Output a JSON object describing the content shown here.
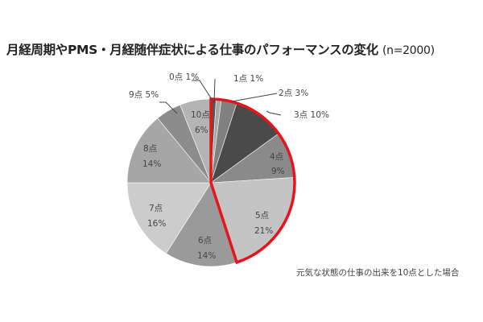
{
  "chart_data": {
    "type": "pie",
    "title": "月経周期やPMS・月経随伴症状による仕事のパフォーマンスの変化",
    "title_suffix": "(n=2000)",
    "note": "元気な状態の仕事の出来を10点とした場合",
    "categories": [
      "0点",
      "1点",
      "2点",
      "3点",
      "4点",
      "5点",
      "6点",
      "7点",
      "8点",
      "9点",
      "10点"
    ],
    "values": [
      1,
      1,
      3,
      10,
      9,
      21,
      14,
      16,
      14,
      5,
      6
    ],
    "unit": "%",
    "colors": [
      "#555555",
      "#a8a8a8",
      "#808080",
      "#4a4a4a",
      "#8a8a8a",
      "#c4c4c4",
      "#9a9a9a",
      "#cccccc",
      "#a6a6a6",
      "#8c8c8c",
      "#b4b4b4"
    ],
    "highlight": {
      "categories": [
        "0点",
        "1点",
        "2点",
        "3点",
        "4点",
        "5点"
      ],
      "total_percent": 45,
      "color": "#e8141c"
    },
    "start_angle": "12 o'clock",
    "direction": "clockwise"
  },
  "labels": {
    "s0": "0点 1%",
    "s1": "1点 1%",
    "s2": "2点 3%",
    "s3": "3点 10%",
    "s4a": "4点",
    "s4b": "9%",
    "s5a": "5点",
    "s5b": "21%",
    "s6a": "6点",
    "s6b": "14%",
    "s7a": "7点",
    "s7b": "16%",
    "s8a": "8点",
    "s8b": "14%",
    "s9": "9点 5%",
    "s10a": "10点",
    "s10b": "6%"
  }
}
